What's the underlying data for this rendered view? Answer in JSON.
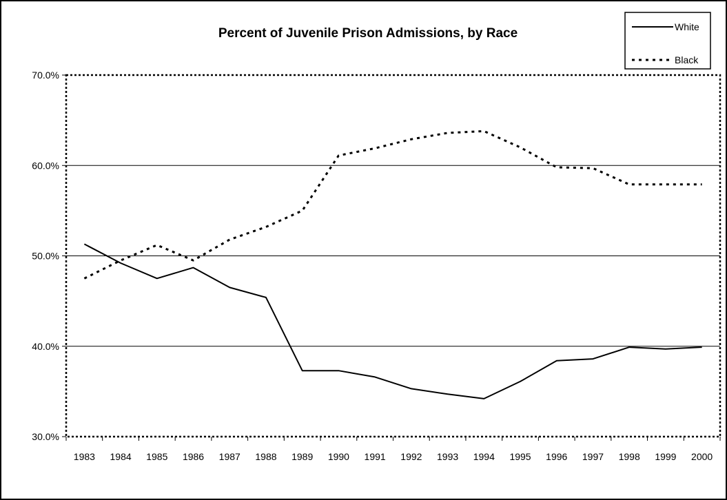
{
  "chart_data": {
    "type": "line",
    "title": "Percent of Juvenile Prison Admissions, by Race",
    "xlabel": "",
    "ylabel": "",
    "x": [
      "1983",
      "1984",
      "1985",
      "1986",
      "1987",
      "1988",
      "1989",
      "1990",
      "1991",
      "1992",
      "1993",
      "1994",
      "1995",
      "1996",
      "1997",
      "1998",
      "1999",
      "2000"
    ],
    "ylim": [
      30,
      70
    ],
    "yticks": [
      30,
      40,
      50,
      60,
      70
    ],
    "ytick_labels": [
      "30.0%",
      "40.0%",
      "50.0%",
      "60.0%",
      "70.0%"
    ],
    "grid": "horizontal",
    "legend_position": "top-right",
    "series": [
      {
        "name": "White",
        "style": "solid",
        "color": "#000000",
        "values": [
          51.3,
          49.2,
          47.5,
          48.7,
          46.5,
          45.4,
          37.3,
          37.3,
          36.6,
          35.3,
          34.7,
          34.2,
          36.1,
          38.4,
          38.6,
          39.9,
          39.7,
          39.9
        ]
      },
      {
        "name": "Black",
        "style": "dotted",
        "color": "#000000",
        "values": [
          47.5,
          49.5,
          51.2,
          49.5,
          51.8,
          53.2,
          55.0,
          61.1,
          61.9,
          62.9,
          63.6,
          63.8,
          62.0,
          59.8,
          59.7,
          57.9,
          57.9,
          57.9
        ]
      }
    ]
  }
}
